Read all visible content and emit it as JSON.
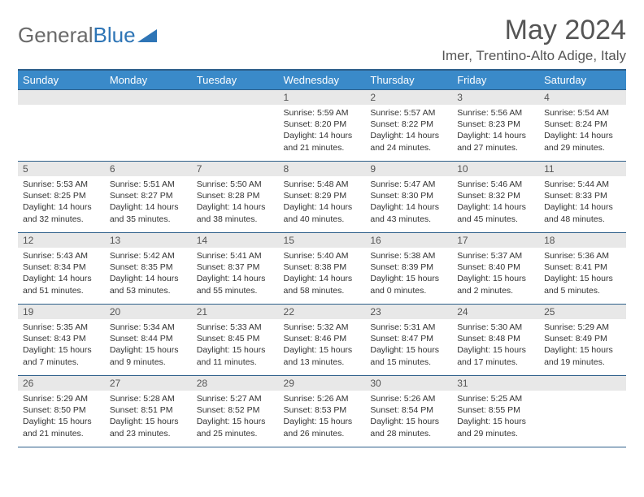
{
  "brand": {
    "part1": "General",
    "part2": "Blue"
  },
  "title": "May 2024",
  "location": "Imer, Trentino-Alto Adige, Italy",
  "colors": {
    "header_bg": "#3a8ac9",
    "header_border": "#2e5f8a",
    "daynum_bg": "#e8e8e8",
    "text_muted": "#555555",
    "brand_gray": "#6a6a6a",
    "brand_blue": "#2e75b6"
  },
  "weekdays": [
    "Sunday",
    "Monday",
    "Tuesday",
    "Wednesday",
    "Thursday",
    "Friday",
    "Saturday"
  ],
  "weeks": [
    [
      null,
      null,
      null,
      {
        "n": "1",
        "sr": "5:59 AM",
        "ss": "8:20 PM",
        "dl": "14 hours and 21 minutes."
      },
      {
        "n": "2",
        "sr": "5:57 AM",
        "ss": "8:22 PM",
        "dl": "14 hours and 24 minutes."
      },
      {
        "n": "3",
        "sr": "5:56 AM",
        "ss": "8:23 PM",
        "dl": "14 hours and 27 minutes."
      },
      {
        "n": "4",
        "sr": "5:54 AM",
        "ss": "8:24 PM",
        "dl": "14 hours and 29 minutes."
      }
    ],
    [
      {
        "n": "5",
        "sr": "5:53 AM",
        "ss": "8:25 PM",
        "dl": "14 hours and 32 minutes."
      },
      {
        "n": "6",
        "sr": "5:51 AM",
        "ss": "8:27 PM",
        "dl": "14 hours and 35 minutes."
      },
      {
        "n": "7",
        "sr": "5:50 AM",
        "ss": "8:28 PM",
        "dl": "14 hours and 38 minutes."
      },
      {
        "n": "8",
        "sr": "5:48 AM",
        "ss": "8:29 PM",
        "dl": "14 hours and 40 minutes."
      },
      {
        "n": "9",
        "sr": "5:47 AM",
        "ss": "8:30 PM",
        "dl": "14 hours and 43 minutes."
      },
      {
        "n": "10",
        "sr": "5:46 AM",
        "ss": "8:32 PM",
        "dl": "14 hours and 45 minutes."
      },
      {
        "n": "11",
        "sr": "5:44 AM",
        "ss": "8:33 PM",
        "dl": "14 hours and 48 minutes."
      }
    ],
    [
      {
        "n": "12",
        "sr": "5:43 AM",
        "ss": "8:34 PM",
        "dl": "14 hours and 51 minutes."
      },
      {
        "n": "13",
        "sr": "5:42 AM",
        "ss": "8:35 PM",
        "dl": "14 hours and 53 minutes."
      },
      {
        "n": "14",
        "sr": "5:41 AM",
        "ss": "8:37 PM",
        "dl": "14 hours and 55 minutes."
      },
      {
        "n": "15",
        "sr": "5:40 AM",
        "ss": "8:38 PM",
        "dl": "14 hours and 58 minutes."
      },
      {
        "n": "16",
        "sr": "5:38 AM",
        "ss": "8:39 PM",
        "dl": "15 hours and 0 minutes."
      },
      {
        "n": "17",
        "sr": "5:37 AM",
        "ss": "8:40 PM",
        "dl": "15 hours and 2 minutes."
      },
      {
        "n": "18",
        "sr": "5:36 AM",
        "ss": "8:41 PM",
        "dl": "15 hours and 5 minutes."
      }
    ],
    [
      {
        "n": "19",
        "sr": "5:35 AM",
        "ss": "8:43 PM",
        "dl": "15 hours and 7 minutes."
      },
      {
        "n": "20",
        "sr": "5:34 AM",
        "ss": "8:44 PM",
        "dl": "15 hours and 9 minutes."
      },
      {
        "n": "21",
        "sr": "5:33 AM",
        "ss": "8:45 PM",
        "dl": "15 hours and 11 minutes."
      },
      {
        "n": "22",
        "sr": "5:32 AM",
        "ss": "8:46 PM",
        "dl": "15 hours and 13 minutes."
      },
      {
        "n": "23",
        "sr": "5:31 AM",
        "ss": "8:47 PM",
        "dl": "15 hours and 15 minutes."
      },
      {
        "n": "24",
        "sr": "5:30 AM",
        "ss": "8:48 PM",
        "dl": "15 hours and 17 minutes."
      },
      {
        "n": "25",
        "sr": "5:29 AM",
        "ss": "8:49 PM",
        "dl": "15 hours and 19 minutes."
      }
    ],
    [
      {
        "n": "26",
        "sr": "5:29 AM",
        "ss": "8:50 PM",
        "dl": "15 hours and 21 minutes."
      },
      {
        "n": "27",
        "sr": "5:28 AM",
        "ss": "8:51 PM",
        "dl": "15 hours and 23 minutes."
      },
      {
        "n": "28",
        "sr": "5:27 AM",
        "ss": "8:52 PM",
        "dl": "15 hours and 25 minutes."
      },
      {
        "n": "29",
        "sr": "5:26 AM",
        "ss": "8:53 PM",
        "dl": "15 hours and 26 minutes."
      },
      {
        "n": "30",
        "sr": "5:26 AM",
        "ss": "8:54 PM",
        "dl": "15 hours and 28 minutes."
      },
      {
        "n": "31",
        "sr": "5:25 AM",
        "ss": "8:55 PM",
        "dl": "15 hours and 29 minutes."
      },
      null
    ]
  ],
  "labels": {
    "sunrise": "Sunrise:",
    "sunset": "Sunset:",
    "daylight": "Daylight:"
  }
}
